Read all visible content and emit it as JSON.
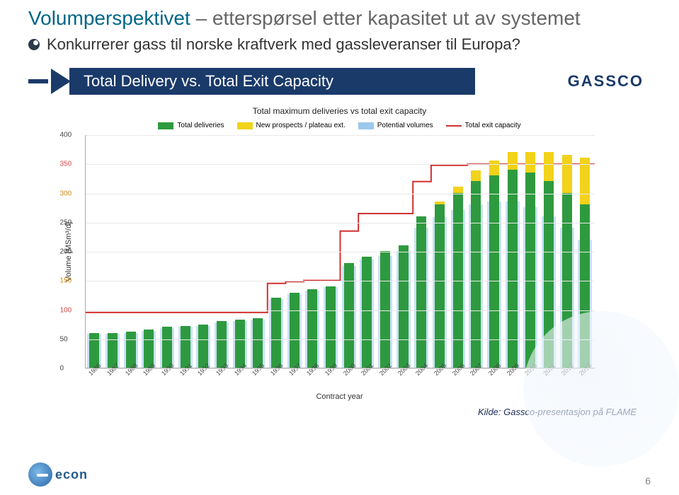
{
  "title": {
    "main": "Volumperspektivet",
    "sub": "– etterspørsel etter kapasitet ut av systemet"
  },
  "bullet": "Konkurrerer gass til norske kraftverk med gassleveranser til Europa?",
  "banner": {
    "title": "Total Delivery vs. Total Exit Capacity",
    "brand": "GASSCO"
  },
  "source": "Kilde: Gassco-presentasjon på FLAME",
  "pageNumber": "6",
  "econ": "econ",
  "chart": {
    "type": "stacked-bar-with-line",
    "title": "Total maximum deliveries vs total exit capacity",
    "ylabel": "Volume [MSm³/d]",
    "xlabel": "Contract year",
    "ylim": [
      0,
      400
    ],
    "ytick_step": 50,
    "background_color": "#ffffff",
    "grid_color": "#e9e9e9",
    "tick_label_colors": [
      "#444444",
      "#444444",
      "#d64848",
      "#cc8a1a",
      "#444444",
      "#444444",
      "#cc8a1a",
      "#d64848",
      "#444444"
    ],
    "series_colors": {
      "total_deliveries": "#2e9a3f",
      "new_prospects": "#f2d21a",
      "potential_volumes": "#9cc8eb",
      "exit_capacity": "#d23030"
    },
    "legend": [
      {
        "label": "Total deliveries",
        "key": "total_deliveries",
        "type": "box"
      },
      {
        "label": "New prospects / plateau ext.",
        "key": "new_prospects",
        "type": "box"
      },
      {
        "label": "Potential volumes",
        "key": "potential_volumes",
        "type": "box"
      },
      {
        "label": "Total exit capacity",
        "key": "exit_capacity",
        "type": "line"
      }
    ],
    "categories": [
      "1986",
      "1987",
      "1988",
      "1989",
      "1990",
      "1991",
      "1992",
      "1993",
      "1994",
      "1995",
      "1996",
      "1997",
      "1998",
      "1999",
      "2000",
      "2001",
      "2002",
      "2003",
      "2004",
      "2005",
      "2006",
      "2007",
      "2008",
      "2009",
      "2010",
      "2011",
      "2012",
      "2013"
    ],
    "total_deliveries": [
      60,
      60,
      62,
      65,
      70,
      72,
      74,
      80,
      82,
      85,
      120,
      128,
      135,
      140,
      180,
      190,
      200,
      210,
      260,
      280,
      300,
      320,
      330,
      340,
      335,
      320,
      300,
      280
    ],
    "new_prospects": [
      0,
      0,
      0,
      0,
      0,
      0,
      0,
      0,
      0,
      0,
      0,
      0,
      0,
      0,
      0,
      0,
      0,
      0,
      0,
      5,
      10,
      18,
      25,
      30,
      35,
      50,
      65,
      80
    ],
    "potential_volumes": [
      58,
      58,
      60,
      63,
      68,
      70,
      72,
      78,
      80,
      83,
      118,
      126,
      132,
      138,
      175,
      185,
      192,
      200,
      240,
      258,
      270,
      280,
      285,
      285,
      275,
      260,
      240,
      220
    ],
    "exit_capacity": [
      95,
      95,
      95,
      95,
      95,
      95,
      95,
      95,
      95,
      95,
      145,
      148,
      150,
      150,
      235,
      265,
      265,
      265,
      320,
      348,
      348,
      350,
      350,
      350,
      350,
      350,
      350,
      350
    ]
  }
}
